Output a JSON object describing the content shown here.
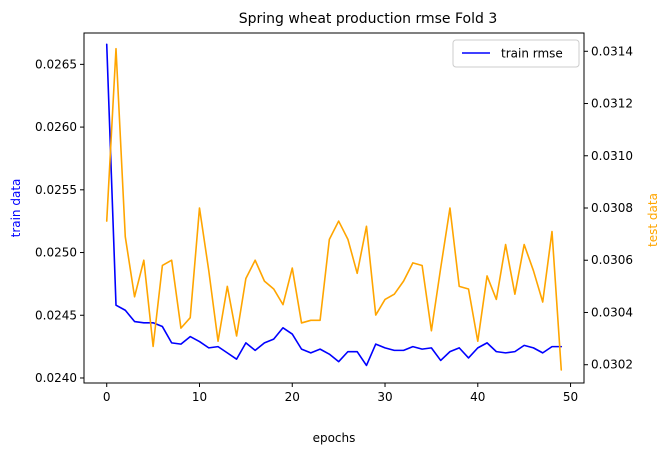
{
  "chart_data": {
    "type": "line",
    "title": "Spring wheat production rmse Fold 3",
    "xlabel": "epochs",
    "ylabel_left": "train data",
    "ylabel_right": "test data",
    "xlim": [
      -2.45,
      51.45
    ],
    "ylim_left": [
      0.02396,
      0.02675
    ],
    "ylim_right": [
      0.03013,
      0.03147
    ],
    "x_ticks": [
      0,
      10,
      20,
      30,
      40,
      50
    ],
    "y_left_ticks": [
      "0.0240",
      "0.0245",
      "0.0250",
      "0.0255",
      "0.0260",
      "0.0265"
    ],
    "y_right_ticks": [
      "0.0302",
      "0.0304",
      "0.0306",
      "0.0308",
      "0.0310",
      "0.0312",
      "0.0314"
    ],
    "legend": {
      "position": "top-right",
      "entries": [
        "train rmse"
      ]
    },
    "colors": {
      "train": "#0000ff",
      "test": "#ffa500"
    },
    "series": [
      {
        "axis": "left",
        "color": "#0000ff",
        "x": [
          0,
          1,
          2,
          3,
          4,
          5,
          6,
          7,
          8,
          9,
          10,
          11,
          12,
          13,
          14,
          15,
          16,
          17,
          18,
          19,
          20,
          21,
          22,
          23,
          24,
          25,
          26,
          27,
          28,
          29,
          30,
          31,
          32,
          33,
          34,
          35,
          36,
          37,
          38,
          39,
          40,
          41,
          42,
          43,
          44,
          45,
          46,
          47,
          48,
          49
        ],
        "values": [
          0.02666,
          0.02458,
          0.02454,
          0.02445,
          0.02444,
          0.02444,
          0.02441,
          0.02428,
          0.02427,
          0.02433,
          0.02429,
          0.02424,
          0.02425,
          0.0242,
          0.02415,
          0.02428,
          0.02422,
          0.02428,
          0.02431,
          0.0244,
          0.02435,
          0.02423,
          0.0242,
          0.02423,
          0.02419,
          0.02413,
          0.02421,
          0.02421,
          0.0241,
          0.02427,
          0.02424,
          0.02422,
          0.02422,
          0.02425,
          0.02423,
          0.02424,
          0.02414,
          0.02421,
          0.02424,
          0.02416,
          0.02424,
          0.02428,
          0.02421,
          0.0242,
          0.02421,
          0.02426,
          0.02424,
          0.0242,
          0.02425,
          0.02425
        ]
      },
      {
        "axis": "right",
        "color": "#ffa500",
        "x": [
          0,
          1,
          2,
          3,
          4,
          5,
          6,
          7,
          8,
          9,
          10,
          11,
          12,
          13,
          14,
          15,
          16,
          17,
          18,
          19,
          20,
          21,
          22,
          23,
          24,
          25,
          26,
          27,
          28,
          29,
          30,
          31,
          32,
          33,
          34,
          35,
          36,
          37,
          38,
          39,
          40,
          41,
          42,
          43,
          44,
          45,
          46,
          47,
          48,
          49
        ],
        "values": [
          0.03075,
          0.03141,
          0.03069,
          0.03046,
          0.0306,
          0.03027,
          0.03058,
          0.0306,
          0.03034,
          0.03038,
          0.0308,
          0.03056,
          0.03029,
          0.0305,
          0.03031,
          0.03053,
          0.0306,
          0.03052,
          0.03049,
          0.03043,
          0.03057,
          0.03036,
          0.03037,
          0.03037,
          0.03068,
          0.03075,
          0.03068,
          0.03055,
          0.03073,
          0.03039,
          0.03045,
          0.03047,
          0.03052,
          0.03059,
          0.03058,
          0.03033,
          0.03057,
          0.0308,
          0.0305,
          0.03049,
          0.03029,
          0.03054,
          0.03045,
          0.03066,
          0.03047,
          0.03066,
          0.03056,
          0.03044,
          0.03071,
          0.03018
        ]
      }
    ]
  }
}
